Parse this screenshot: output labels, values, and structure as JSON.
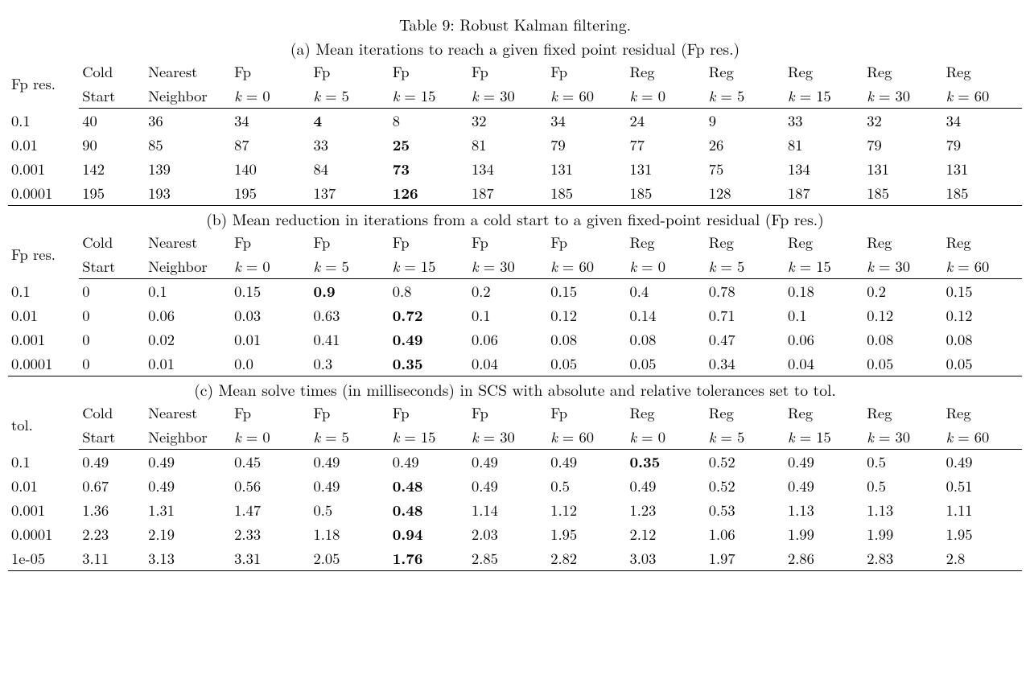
{
  "title": "Table 9: Robust Kalman filtering.",
  "sub_a": "(a) Mean iterations to reach a given fixed point residual (Fp res.)",
  "sub_b": "(b) Mean reduction in iterations from a cold start to a given fixed-point residual (Fp res.)",
  "sub_c": "(c) Mean solve times (in milliseconds) in SCS with absolute and relative tolerances set to tol.",
  "heads": {
    "h0a": "Fp res.",
    "h0c": "tol.",
    "h1t": "Cold",
    "h1b": "Start",
    "h2t": "Nearest",
    "h2b": "Neighbor",
    "fp": "Fp",
    "reg": "Reg",
    "k0": "k = 0",
    "k5": "k = 5",
    "k15": "k = 15",
    "k30": "k = 30",
    "k60": "k = 60"
  },
  "a": {
    "rows": [
      {
        "l": "0.1",
        "v": [
          "40",
          "36",
          "34",
          "4",
          "8",
          "32",
          "34",
          "24",
          "9",
          "33",
          "32",
          "34"
        ],
        "b": 3
      },
      {
        "l": "0.01",
        "v": [
          "90",
          "85",
          "87",
          "33",
          "25",
          "81",
          "79",
          "77",
          "26",
          "81",
          "79",
          "79"
        ],
        "b": 4
      },
      {
        "l": "0.001",
        "v": [
          "142",
          "139",
          "140",
          "84",
          "73",
          "134",
          "131",
          "131",
          "75",
          "134",
          "131",
          "131"
        ],
        "b": 4
      },
      {
        "l": "0.0001",
        "v": [
          "195",
          "193",
          "195",
          "137",
          "126",
          "187",
          "185",
          "185",
          "128",
          "187",
          "185",
          "185"
        ],
        "b": 4
      }
    ]
  },
  "b": {
    "rows": [
      {
        "l": "0.1",
        "v": [
          "0",
          "0.1",
          "0.15",
          "0.9",
          "0.8",
          "0.2",
          "0.15",
          "0.4",
          "0.78",
          "0.18",
          "0.2",
          "0.15"
        ],
        "b": 3
      },
      {
        "l": "0.01",
        "v": [
          "0",
          "0.06",
          "0.03",
          "0.63",
          "0.72",
          "0.1",
          "0.12",
          "0.14",
          "0.71",
          "0.1",
          "0.12",
          "0.12"
        ],
        "b": 4
      },
      {
        "l": "0.001",
        "v": [
          "0",
          "0.02",
          "0.01",
          "0.41",
          "0.49",
          "0.06",
          "0.08",
          "0.08",
          "0.47",
          "0.06",
          "0.08",
          "0.08"
        ],
        "b": 4
      },
      {
        "l": "0.0001",
        "v": [
          "0",
          "0.01",
          "0.0",
          "0.3",
          "0.35",
          "0.04",
          "0.05",
          "0.05",
          "0.34",
          "0.04",
          "0.05",
          "0.05"
        ],
        "b": 4
      }
    ]
  },
  "c": {
    "rows": [
      {
        "l": "0.1",
        "v": [
          "0.49",
          "0.49",
          "0.45",
          "0.49",
          "0.49",
          "0.49",
          "0.49",
          "0.35",
          "0.52",
          "0.49",
          "0.5",
          "0.49"
        ],
        "b": 7
      },
      {
        "l": "0.01",
        "v": [
          "0.67",
          "0.49",
          "0.56",
          "0.49",
          "0.48",
          "0.49",
          "0.5",
          "0.49",
          "0.52",
          "0.49",
          "0.5",
          "0.51"
        ],
        "b": 4
      },
      {
        "l": "0.001",
        "v": [
          "1.36",
          "1.31",
          "1.47",
          "0.5",
          "0.48",
          "1.14",
          "1.12",
          "1.23",
          "0.53",
          "1.13",
          "1.13",
          "1.11"
        ],
        "b": 4
      },
      {
        "l": "0.0001",
        "v": [
          "2.23",
          "2.19",
          "2.33",
          "1.18",
          "0.94",
          "2.03",
          "1.95",
          "2.12",
          "1.06",
          "1.99",
          "1.99",
          "1.95"
        ],
        "b": 4
      },
      {
        "l": "1e-05",
        "v": [
          "3.11",
          "3.13",
          "3.31",
          "2.05",
          "1.76",
          "2.85",
          "2.82",
          "3.03",
          "1.97",
          "2.86",
          "2.83",
          "2.8"
        ],
        "b": 4
      }
    ]
  }
}
